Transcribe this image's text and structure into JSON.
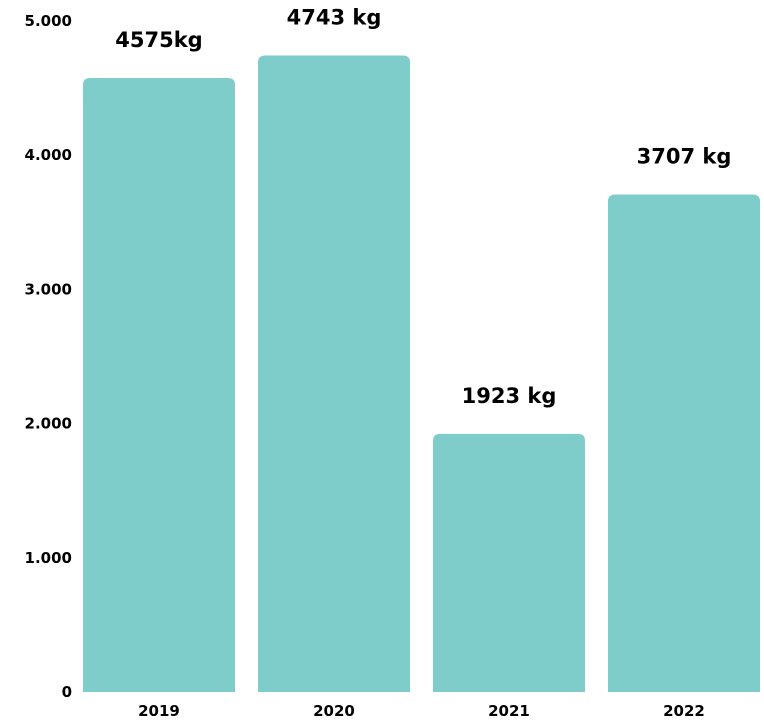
{
  "chart_data": {
    "type": "bar",
    "title": "",
    "xlabel": "",
    "ylabel": "",
    "categories": [
      "2019",
      "2020",
      "2021",
      "2022"
    ],
    "values": [
      4575,
      4743,
      1923,
      3707
    ],
    "data_labels": [
      "4575kg",
      "4743 kg",
      "1923 kg",
      "3707 kg"
    ],
    "yticks": [
      0,
      1000,
      2000,
      3000,
      4000,
      5000
    ],
    "ytick_labels": [
      "0",
      "1.000",
      "2.000",
      "3.000",
      "4.000",
      "5.000"
    ],
    "ylim": [
      0,
      5000
    ],
    "grid": false,
    "legend": "none",
    "bar_color": "#7ecdcb"
  }
}
